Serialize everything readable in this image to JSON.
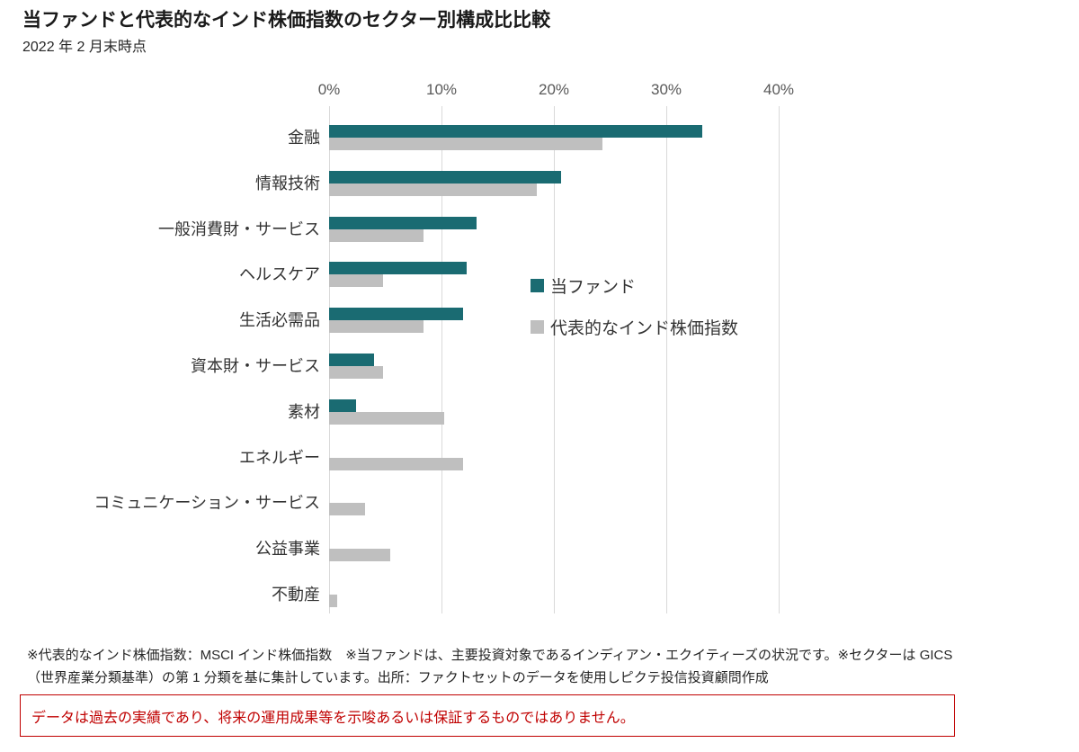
{
  "title": "当ファンドと代表的なインド株価指数のセクター別構成比比較",
  "subtitle": "2022 年 2 月末時点",
  "chart_data": {
    "type": "bar",
    "orientation": "horizontal",
    "title": "当ファンドと代表的なインド株価指数のセクター別構成比比較",
    "subtitle": "2022 年 2 月末時点",
    "categories": [
      "金融",
      "情報技術",
      "一般消費財・サービス",
      "ヘルスケア",
      "生活必需品",
      "資本財・サービス",
      "素材",
      "エネルギー",
      "コミュニケーション・サービス",
      "公益事業",
      "不動産"
    ],
    "series": [
      {
        "name": "当ファンド",
        "color": "#1a6b72",
        "values": [
          33.2,
          20.6,
          13.1,
          12.2,
          11.9,
          4.0,
          2.4,
          0,
          0,
          0,
          0
        ]
      },
      {
        "name": "代表的なインド株価指数",
        "color": "#bfbfbf",
        "values": [
          24.3,
          18.5,
          8.4,
          4.8,
          8.4,
          4.8,
          10.2,
          11.9,
          3.2,
          5.4,
          0.7
        ]
      }
    ],
    "x_ticks": [
      "0%",
      "10%",
      "20%",
      "30%",
      "40%"
    ],
    "x_tick_values": [
      0,
      10,
      20,
      30,
      40
    ],
    "xlim": [
      0,
      41.1
    ],
    "unit": "%",
    "grid": "vertical-only",
    "gridline_color": "#d9d9d9",
    "legend_position": "center-right"
  },
  "footnote": {
    "line1": "※代表的なインド株価指数：MSCI インド株価指数　※当ファンドは、主要投資対象であるインディアン・エクイティーズの状況です。※セクターは GICS",
    "line2": "（世界産業分類基準）の第 1 分類を基に集計しています。出所：ファクトセットのデータを使用しピクテ投信投資顧問作成"
  },
  "disclaimer": "データは過去の実績であり、将来の運用成果等を示唆あるいは保証するものではありません。",
  "colors": {
    "fund_bar": "#1a6b72",
    "index_bar": "#bfbfbf",
    "disclaimer_red": "#c00000",
    "axis_text": "#595959"
  }
}
